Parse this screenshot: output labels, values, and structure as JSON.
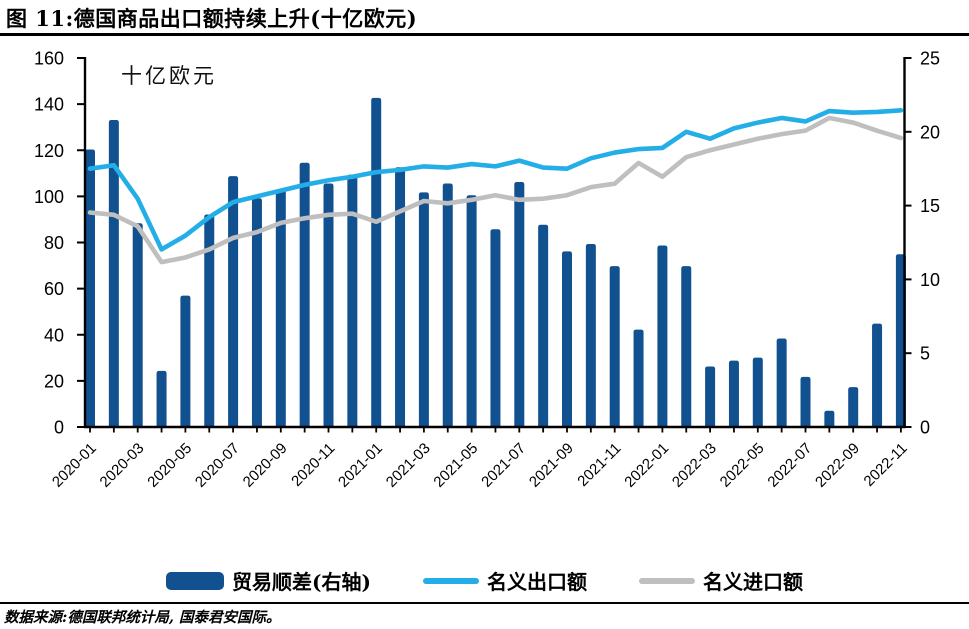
{
  "header": {
    "title": "图 11:德国商品出口额持续上升(十亿欧元)"
  },
  "chart_data": {
    "type": "combo",
    "title": "图 11:德国商品出口额持续上升(十亿欧元)",
    "unit_label": "十亿欧元",
    "legend_position": "bottom",
    "grid": false,
    "categories": [
      "2020-01",
      "2020-02",
      "2020-03",
      "2020-04",
      "2020-05",
      "2020-06",
      "2020-07",
      "2020-08",
      "2020-09",
      "2020-10",
      "2020-11",
      "2020-12",
      "2021-01",
      "2021-02",
      "2021-03",
      "2021-04",
      "2021-05",
      "2021-06",
      "2021-07",
      "2021-08",
      "2021-09",
      "2021-10",
      "2021-11",
      "2021-12",
      "2022-01",
      "2022-02",
      "2022-03",
      "2022-04",
      "2022-05",
      "2022-06",
      "2022-07",
      "2022-08",
      "2022-09",
      "2022-10",
      "2022-11"
    ],
    "x_label_every": 2,
    "left_axis": {
      "range": [
        0,
        160
      ],
      "ticks": [
        0,
        20,
        40,
        60,
        80,
        100,
        120,
        140,
        160
      ]
    },
    "right_axis": {
      "range": [
        0,
        25
      ],
      "ticks": [
        0,
        5,
        10,
        15,
        20,
        25
      ]
    },
    "series": [
      {
        "name": "贸易顺差(右轴)",
        "type": "bar",
        "axis": "right",
        "color": "#11518F",
        "values": [
          18.8,
          20.8,
          13.8,
          3.8,
          8.9,
          14.4,
          17.0,
          15.5,
          16.1,
          17.9,
          16.5,
          17.1,
          22.3,
          17.6,
          15.9,
          16.5,
          15.7,
          13.4,
          16.6,
          13.7,
          11.9,
          12.4,
          10.9,
          6.6,
          12.3,
          10.9,
          4.1,
          4.5,
          4.7,
          6.0,
          3.4,
          1.1,
          2.7,
          7.0,
          11.7
        ]
      },
      {
        "name": "名义出口额",
        "type": "line",
        "axis": "left",
        "color": "#24AEE8",
        "values": [
          112,
          113.5,
          99,
          77,
          83,
          91,
          97.5,
          100,
          102.5,
          105,
          107,
          108.5,
          110.5,
          111.5,
          113,
          112.5,
          114,
          113,
          115.5,
          112.5,
          112,
          116.5,
          119,
          120.5,
          121,
          128,
          125,
          129.5,
          132,
          134,
          132.5,
          137,
          136.3,
          136.6,
          137.3
        ]
      },
      {
        "name": "名义进口额",
        "type": "line",
        "axis": "left",
        "color": "#BFBFBF",
        "values": [
          93,
          92,
          87,
          71.5,
          73.5,
          77,
          82,
          84.5,
          88.5,
          90.5,
          92,
          92.5,
          89,
          93.5,
          98,
          97,
          98.5,
          100.5,
          98.5,
          99,
          100.5,
          104,
          105.5,
          114.5,
          108.5,
          117,
          120,
          122.5,
          125,
          127,
          128.5,
          134,
          132,
          128.5,
          125.3
        ]
      }
    ]
  },
  "legend": {
    "items": [
      {
        "label": "贸易顺差(右轴)",
        "swatch": "bar-swatch"
      },
      {
        "label": "名义出口额",
        "swatch": "line-swatch"
      },
      {
        "label": "名义进口额",
        "swatch": "line-swatch"
      }
    ]
  },
  "footer": {
    "source_text": "数据来源:德国联邦统计局, 国泰君安国际。"
  }
}
